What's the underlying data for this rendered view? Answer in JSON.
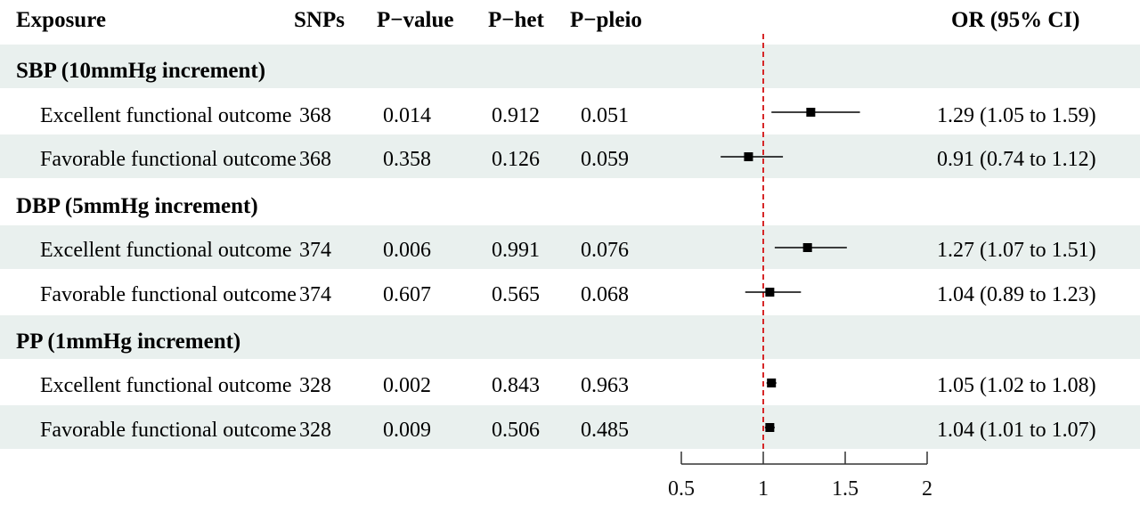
{
  "headers": {
    "exposure": "Exposure",
    "snps": "SNPs",
    "pvalue": "P−value",
    "phet": "P−het",
    "ppleio": "P−pleio",
    "or": "OR (95% CI)"
  },
  "groups": [
    {
      "label": "SBP (10mmHg increment)",
      "rows": [
        {
          "name": "Excellent functional outcome",
          "snps": "368",
          "pvalue": "0.014",
          "phet": "0.912",
          "ppleio": "0.051",
          "or_text": "1.29 (1.05 to 1.59)"
        },
        {
          "name": "Favorable functional outcome",
          "snps": "368",
          "pvalue": "0.358",
          "phet": "0.126",
          "ppleio": "0.059",
          "or_text": "0.91 (0.74 to 1.12)"
        }
      ]
    },
    {
      "label": "DBP (5mmHg increment)",
      "rows": [
        {
          "name": "Excellent functional outcome",
          "snps": "374",
          "pvalue": "0.006",
          "phet": "0.991",
          "ppleio": "0.076",
          "or_text": "1.27 (1.07 to 1.51)"
        },
        {
          "name": "Favorable functional outcome",
          "snps": "374",
          "pvalue": "0.607",
          "phet": "0.565",
          "ppleio": "0.068",
          "or_text": "1.04 (0.89 to 1.23)"
        }
      ]
    },
    {
      "label": "PP (1mmHg increment)",
      "rows": [
        {
          "name": "Excellent functional outcome",
          "snps": "328",
          "pvalue": "0.002",
          "phet": "0.843",
          "ppleio": "0.963",
          "or_text": "1.05 (1.02 to 1.08)"
        },
        {
          "name": "Favorable functional outcome",
          "snps": "328",
          "pvalue": "0.009",
          "phet": "0.506",
          "ppleio": "0.485",
          "or_text": "1.04 (1.01 to 1.07)"
        }
      ]
    }
  ],
  "chart_data": {
    "type": "forest",
    "reference_line": 1,
    "reference_line_color": "#d62728",
    "point_color": "#000000",
    "band_color": "#e9f0ee",
    "xlim": [
      0.5,
      2
    ],
    "xticks": [
      0.5,
      1,
      1.5,
      2
    ],
    "xtick_labels": [
      "0.5",
      "1",
      "1.5",
      "2"
    ],
    "points": [
      {
        "or": 1.29,
        "lo": 1.05,
        "hi": 1.59
      },
      {
        "or": 0.91,
        "lo": 0.74,
        "hi": 1.12
      },
      {
        "or": 1.27,
        "lo": 1.07,
        "hi": 1.51
      },
      {
        "or": 1.04,
        "lo": 0.89,
        "hi": 1.23
      },
      {
        "or": 1.05,
        "lo": 1.02,
        "hi": 1.08
      },
      {
        "or": 1.04,
        "lo": 1.01,
        "hi": 1.07
      }
    ]
  }
}
